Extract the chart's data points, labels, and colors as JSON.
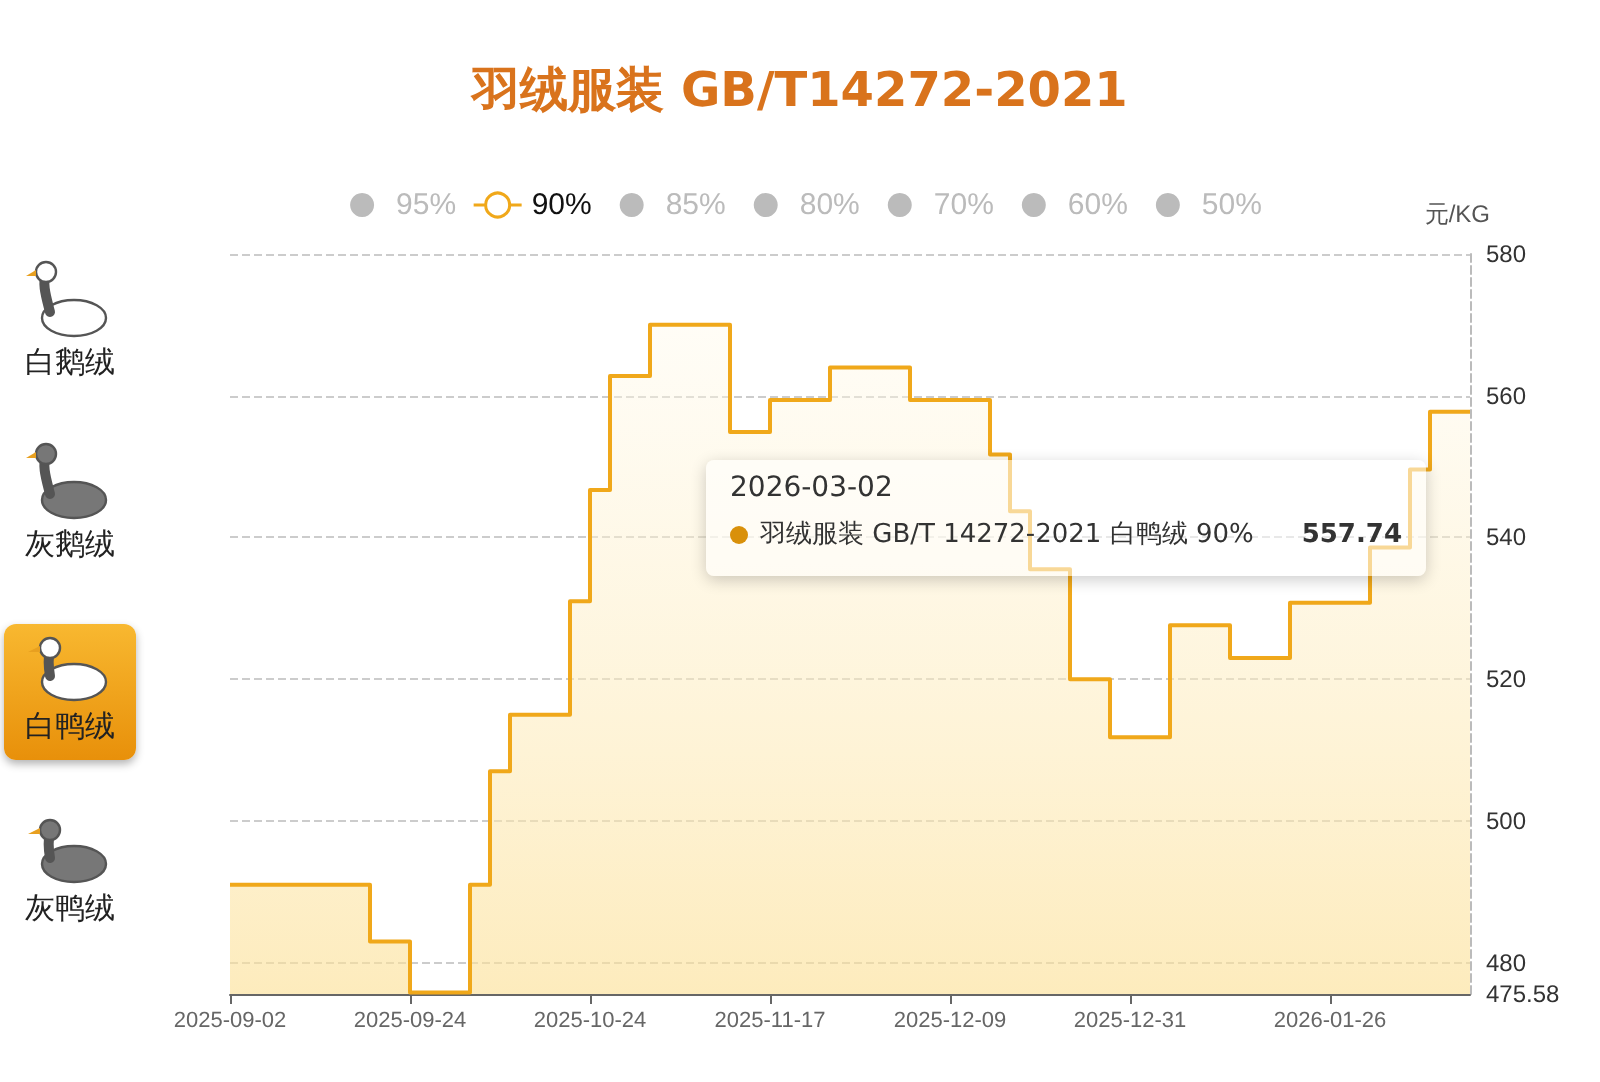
{
  "chart_data": {
    "type": "area",
    "title": "羽绒服装 GB/T14272-2021",
    "ylabel": "元/KG",
    "categories": [
      "2025-09-02",
      null,
      null,
      null,
      null,
      null,
      null,
      null,
      null,
      "2025-09-24",
      null,
      null,
      null,
      null,
      null,
      null,
      null,
      null,
      "2025-10-24",
      null,
      null,
      null,
      null,
      null,
      null,
      null,
      null,
      "2025-11-17",
      null,
      null,
      null,
      null,
      null,
      null,
      null,
      null,
      "2025-12-09",
      null,
      null,
      null,
      null,
      null,
      null,
      null,
      null,
      "2025-12-31",
      null,
      null,
      null,
      null,
      null,
      null,
      null,
      null,
      null,
      "2026-01-26",
      null,
      null,
      null,
      null,
      null,
      null,
      null
    ],
    "series": [
      {
        "name": "95%",
        "color": "#bbbbbb",
        "values": [
          null,
          null,
          null,
          null,
          null,
          null,
          null,
          null,
          null,
          null,
          null,
          null,
          null,
          null,
          null,
          null,
          null,
          null,
          null,
          null,
          null,
          null,
          null,
          null,
          null,
          null,
          null,
          null,
          null,
          null,
          null,
          null,
          null,
          null,
          null,
          null,
          null,
          null,
          null,
          null,
          null,
          null,
          null,
          null,
          null,
          null,
          null,
          null,
          null,
          null,
          null,
          null,
          null,
          null,
          null,
          null,
          null,
          null,
          null,
          null,
          null,
          null,
          null
        ]
      },
      {
        "name": "90%",
        "color": "#f0a81a",
        "values": [
          491,
          491,
          491,
          491,
          491,
          491,
          491,
          483,
          483,
          475.8,
          475.8,
          475.8,
          491,
          507,
          515,
          515,
          515,
          531,
          546.7,
          562.8,
          562.8,
          570,
          570,
          570,
          570,
          554.9,
          554.9,
          559.4,
          559.4,
          559.4,
          564,
          564,
          564,
          564,
          559.4,
          559.4,
          559.4,
          559.4,
          551.7,
          543.7,
          535.5,
          535.5,
          520,
          520,
          511.8,
          511.8,
          511.8,
          527.6,
          527.6,
          527.6,
          523,
          523,
          523,
          530.8,
          530.8,
          530.8,
          530.8,
          538.6,
          538.6,
          549.6,
          557.74,
          557.74,
          557.74
        ]
      },
      {
        "name": "85%",
        "color": "#bbbbbb",
        "values": [
          null,
          null,
          null,
          null,
          null,
          null,
          null,
          null,
          null,
          null,
          null,
          null,
          null,
          null,
          null,
          null,
          null,
          null,
          null,
          null,
          null,
          null,
          null,
          null,
          null,
          null,
          null,
          null,
          null,
          null,
          null,
          null,
          null,
          null,
          null,
          null,
          null,
          null,
          null,
          null,
          null,
          null,
          null,
          null,
          null,
          null,
          null,
          null,
          null,
          null,
          null,
          null,
          null,
          null,
          null,
          null,
          null,
          null,
          null,
          null,
          null,
          null,
          null
        ]
      },
      {
        "name": "80%",
        "color": "#bbbbbb",
        "values": [
          null,
          null,
          null,
          null,
          null,
          null,
          null,
          null,
          null,
          null,
          null,
          null,
          null,
          null,
          null,
          null,
          null,
          null,
          null,
          null,
          null,
          null,
          null,
          null,
          null,
          null,
          null,
          null,
          null,
          null,
          null,
          null,
          null,
          null,
          null,
          null,
          null,
          null,
          null,
          null,
          null,
          null,
          null,
          null,
          null,
          null,
          null,
          null,
          null,
          null,
          null,
          null,
          null,
          null,
          null,
          null,
          null,
          null,
          null,
          null,
          null,
          null,
          null
        ]
      },
      {
        "name": "70%",
        "color": "#bbbbbb",
        "values": [
          null,
          null,
          null,
          null,
          null,
          null,
          null,
          null,
          null,
          null,
          null,
          null,
          null,
          null,
          null,
          null,
          null,
          null,
          null,
          null,
          null,
          null,
          null,
          null,
          null,
          null,
          null,
          null,
          null,
          null,
          null,
          null,
          null,
          null,
          null,
          null,
          null,
          null,
          null,
          null,
          null,
          null,
          null,
          null,
          null,
          null,
          null,
          null,
          null,
          null,
          null,
          null,
          null,
          null,
          null,
          null,
          null,
          null,
          null,
          null,
          null,
          null,
          null
        ]
      },
      {
        "name": "60%",
        "color": "#bbbbbb",
        "values": [
          null,
          null,
          null,
          null,
          null,
          null,
          null,
          null,
          null,
          null,
          null,
          null,
          null,
          null,
          null,
          null,
          null,
          null,
          null,
          null,
          null,
          null,
          null,
          null,
          null,
          null,
          null,
          null,
          null,
          null,
          null,
          null,
          null,
          null,
          null,
          null,
          null,
          null,
          null,
          null,
          null,
          null,
          null,
          null,
          null,
          null,
          null,
          null,
          null,
          null,
          null,
          null,
          null,
          null,
          null,
          null,
          null,
          null,
          null,
          null,
          null,
          null,
          null
        ]
      },
      {
        "name": "50%",
        "color": "#bbbbbb",
        "values": [
          null,
          null,
          null,
          null,
          null,
          null,
          null,
          null,
          null,
          null,
          null,
          null,
          null,
          null,
          null,
          null,
          null,
          null,
          null,
          null,
          null,
          null,
          null,
          null,
          null,
          null,
          null,
          null,
          null,
          null,
          null,
          null,
          null,
          null,
          null,
          null,
          null,
          null,
          null,
          null,
          null,
          null,
          null,
          null,
          null,
          null,
          null,
          null,
          null,
          null,
          null,
          null,
          null,
          null,
          null,
          null,
          null,
          null,
          null,
          null,
          null,
          null,
          null
        ]
      }
    ],
    "ylim": [
      475.58,
      580
    ],
    "yticks": [
      475.58,
      480,
      500,
      520,
      540,
      560,
      580
    ],
    "grid": "y",
    "legend": "top",
    "annotations": [
      "2026-03-02",
      "羽绒服装 GB/T 14272-2021 白鸭绒 90%",
      "557.74",
      "白鹅绒",
      "灰鹅绒",
      "白鸭绒",
      "灰鸭绒"
    ]
  }
}
